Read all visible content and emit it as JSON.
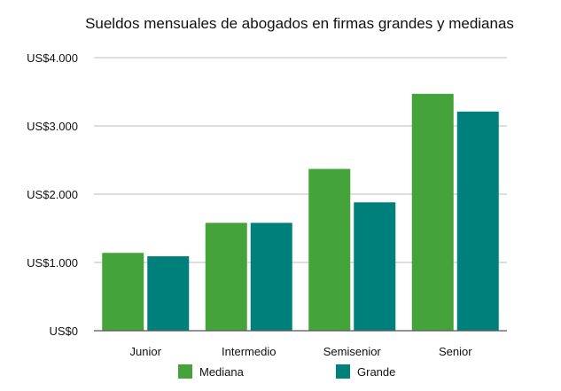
{
  "chart_data": {
    "type": "bar",
    "title": "Sueldos mensuales de abogados en firmas grandes y medianas",
    "xlabel": "",
    "ylabel": "",
    "categories": [
      "Junior",
      "Intermedio",
      "Semisenior",
      "Senior"
    ],
    "series": [
      {
        "name": "Mediana",
        "color": "#44a33b",
        "values": [
          1140,
          1580,
          2370,
          3470
        ]
      },
      {
        "name": "Grande",
        "color": "#00807a",
        "values": [
          1090,
          1580,
          1880,
          3210
        ]
      }
    ],
    "ylim": [
      0,
      4000
    ],
    "yticks": [
      {
        "value": 0,
        "label": "US$0"
      },
      {
        "value": 1000,
        "label": "US$1.000"
      },
      {
        "value": 2000,
        "label": "US$2.000"
      },
      {
        "value": 3000,
        "label": "US$3.000"
      },
      {
        "value": 4000,
        "label": "US$4.000"
      }
    ],
    "grid": true,
    "legend": "bottom-center"
  }
}
